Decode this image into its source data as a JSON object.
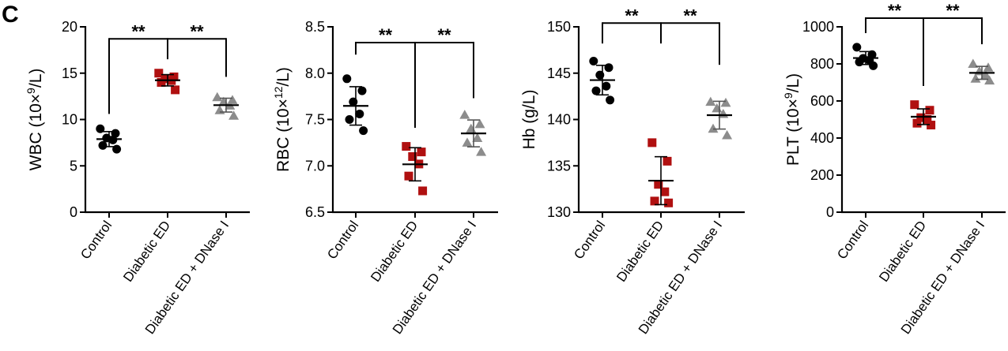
{
  "panel_label": "C",
  "colors": {
    "Control": "#000000",
    "Diabetic ED": "#b01010",
    "Diabetic ED + DNase I": "#8c8c8c"
  },
  "markers": {
    "Control": "circle",
    "Diabetic ED": "square",
    "Diabetic ED + DNase I": "triangle"
  },
  "chart_data": [
    {
      "type": "scatter",
      "ylabel": "WBC (10×⁹/L)",
      "ylabel_main": "WBC (10×",
      "ylabel_sup": "9",
      "ylabel_tail": "/L)",
      "ylim": [
        0,
        20
      ],
      "yticks": [
        0,
        5,
        10,
        15,
        20
      ],
      "ytick_labels": [
        "0",
        "5",
        "10",
        "15",
        "20"
      ],
      "categories": [
        "Control",
        "Diabetic ED",
        "Diabetic ED + DNase I"
      ],
      "series": [
        {
          "group": "Control",
          "values": [
            9.0,
            8.5,
            8.0,
            7.8,
            7.2,
            6.8
          ]
        },
        {
          "group": "Diabetic ED",
          "values": [
            15.0,
            14.6,
            14.4,
            14.2,
            14.0,
            13.2
          ]
        },
        {
          "group": "Diabetic ED + DNase I",
          "values": [
            12.4,
            12.1,
            11.9,
            11.5,
            11.0,
            10.4
          ]
        }
      ],
      "significance": {
        "label": "**",
        "bracket_y": 18.7,
        "drops": [
          10.6,
          16.5,
          14.6
        ]
      }
    },
    {
      "type": "scatter",
      "ylabel_main": "RBC (10×",
      "ylabel_sup": "12",
      "ylabel_tail": "/L)",
      "ylim": [
        6.5,
        8.5
      ],
      "yticks": [
        6.5,
        7.0,
        7.5,
        8.0,
        8.5
      ],
      "ytick_labels": [
        "6.5",
        "7.0",
        "7.5",
        "8.0",
        "8.5"
      ],
      "categories": [
        "Control",
        "Diabetic ED",
        "Diabetic ED + DNase I"
      ],
      "series": [
        {
          "group": "Control",
          "values": [
            7.94,
            7.81,
            7.69,
            7.56,
            7.5,
            7.38
          ]
        },
        {
          "group": "Diabetic ED",
          "values": [
            7.21,
            7.15,
            7.1,
            7.02,
            6.89,
            6.73
          ]
        },
        {
          "group": "Diabetic ED + DNase I",
          "values": [
            7.55,
            7.45,
            7.4,
            7.3,
            7.25,
            7.15
          ]
        }
      ],
      "significance": {
        "label": "**",
        "bracket_y": 8.33,
        "drops": [
          8.2,
          7.41,
          7.73
        ]
      }
    },
    {
      "type": "scatter",
      "ylabel_main": "Hb (g/L)",
      "ylabel_sup": "",
      "ylabel_tail": "",
      "ylim": [
        130,
        150
      ],
      "yticks": [
        130,
        135,
        140,
        145,
        150
      ],
      "ytick_labels": [
        "130",
        "135",
        "140",
        "145",
        "150"
      ],
      "categories": [
        "Control",
        "Diabetic ED",
        "Diabetic ED + DNase I"
      ],
      "series": [
        {
          "group": "Control",
          "values": [
            146.3,
            145.6,
            144.8,
            143.6,
            143.1,
            142.1
          ]
        },
        {
          "group": "Diabetic ED",
          "values": [
            137.5,
            135.5,
            133.0,
            132.2,
            131.2,
            131.0
          ]
        },
        {
          "group": "Diabetic ED + DNase I",
          "values": [
            141.9,
            141.8,
            141.2,
            140.6,
            139.0,
            138.3
          ]
        }
      ],
      "significance": {
        "label": "**",
        "bracket_y": 150.4,
        "drops": [
          148.2,
          148.2,
          145.9
        ]
      }
    },
    {
      "type": "scatter",
      "ylabel_main": "PLT (10×",
      "ylabel_sup": "9",
      "ylabel_tail": "/L)",
      "ylim": [
        0,
        1000
      ],
      "yticks": [
        0,
        200,
        400,
        600,
        800,
        1000
      ],
      "ytick_labels": [
        "0",
        "200",
        "400",
        "600",
        "800",
        "1000"
      ],
      "categories": [
        "Control",
        "Diabetic ED",
        "Diabetic ED + DNase I"
      ],
      "series": [
        {
          "group": "Control",
          "values": [
            890,
            850,
            830,
            820,
            810,
            790
          ]
        },
        {
          "group": "Diabetic ED",
          "values": [
            580,
            550,
            510,
            500,
            480,
            470
          ]
        },
        {
          "group": "Diabetic ED + DNase I",
          "values": [
            800,
            780,
            760,
            740,
            720,
            710
          ]
        }
      ],
      "significance": {
        "label": "**",
        "bracket_y": 1047,
        "drops": [
          966,
          681,
          906
        ]
      }
    }
  ]
}
